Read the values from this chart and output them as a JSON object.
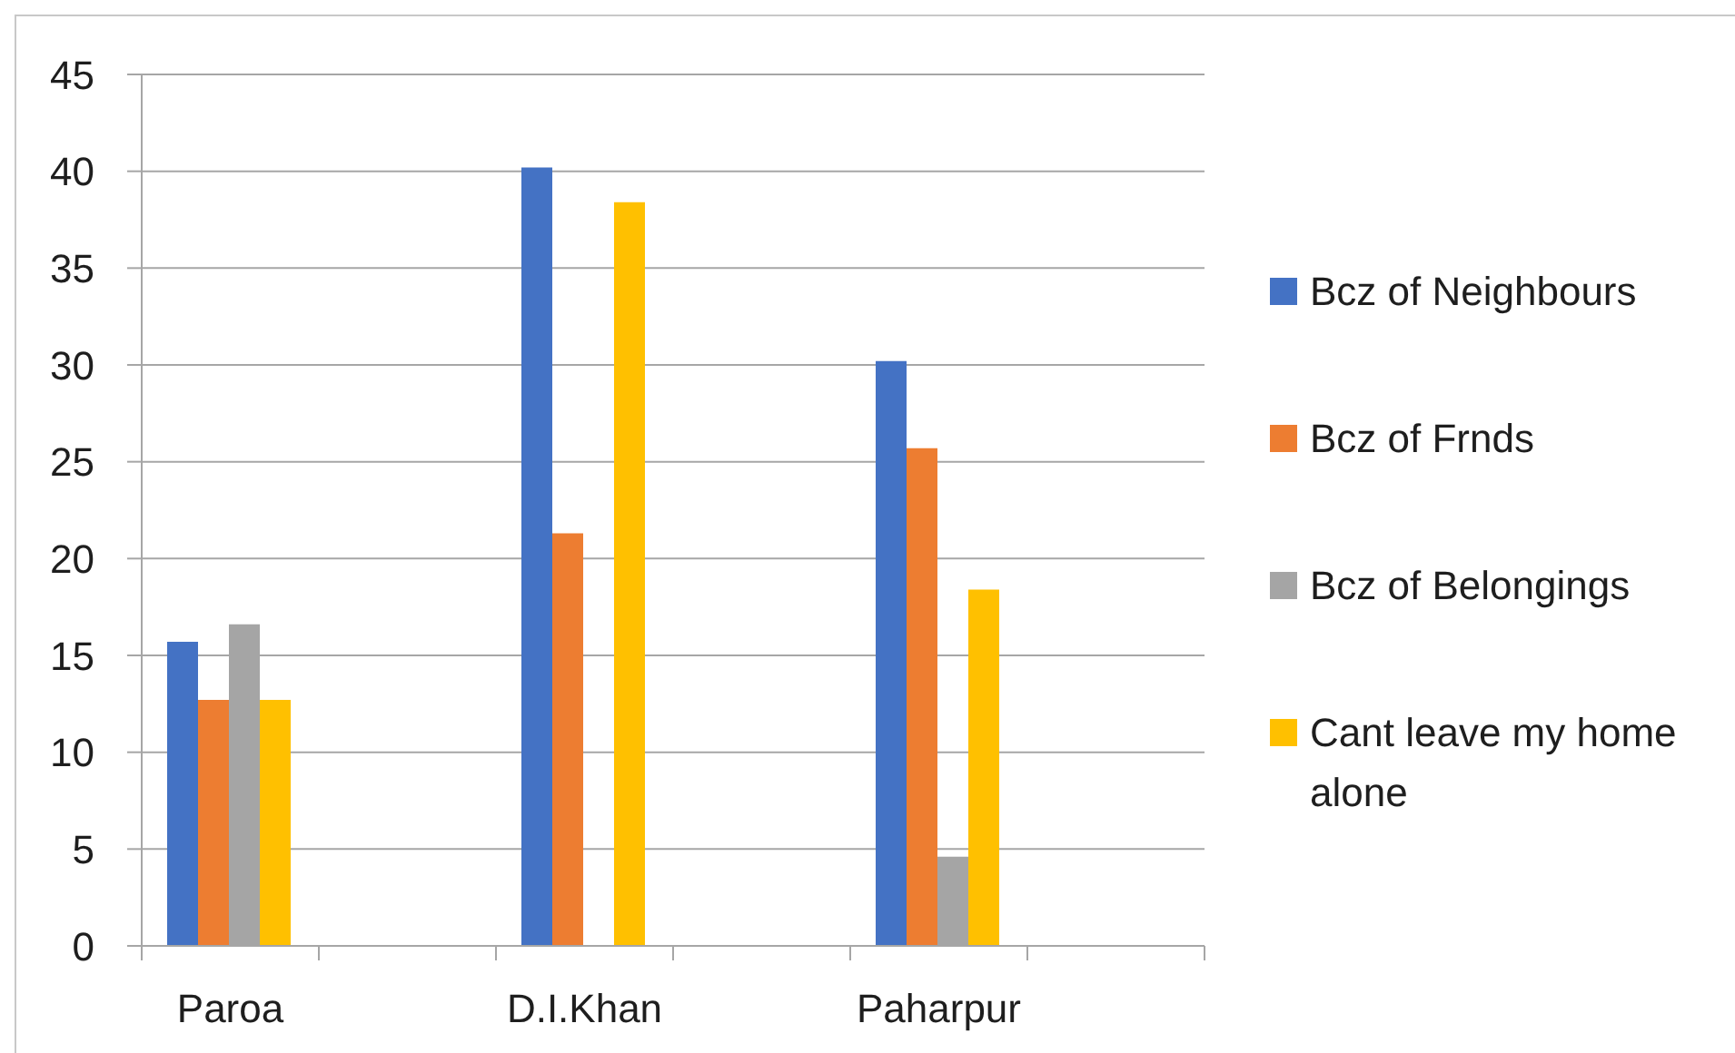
{
  "chart_data": {
    "type": "bar",
    "categories": [
      "Paroa",
      null,
      "D.I.Khan",
      null,
      "Paharpur",
      null
    ],
    "series": [
      {
        "name": "Bcz of Neighbours",
        "color": "#4472c4",
        "values": [
          15.7,
          null,
          40.2,
          null,
          30.2,
          null
        ]
      },
      {
        "name": "Bcz of Frnds",
        "color": "#ed7d31",
        "values": [
          12.7,
          null,
          21.3,
          null,
          25.7,
          null
        ]
      },
      {
        "name": "Bcz of Belongings",
        "color": "#a5a5a5",
        "values": [
          16.6,
          null,
          null,
          null,
          4.6,
          null
        ]
      },
      {
        "name": "Cant leave my home alone",
        "color": "#ffc000",
        "values": [
          12.7,
          null,
          38.4,
          null,
          18.4,
          null
        ]
      }
    ],
    "ylim": [
      0,
      45
    ],
    "yticks": [
      0,
      5,
      10,
      15,
      20,
      25,
      30,
      35,
      40,
      45
    ],
    "grid": "y",
    "legend": "right"
  }
}
